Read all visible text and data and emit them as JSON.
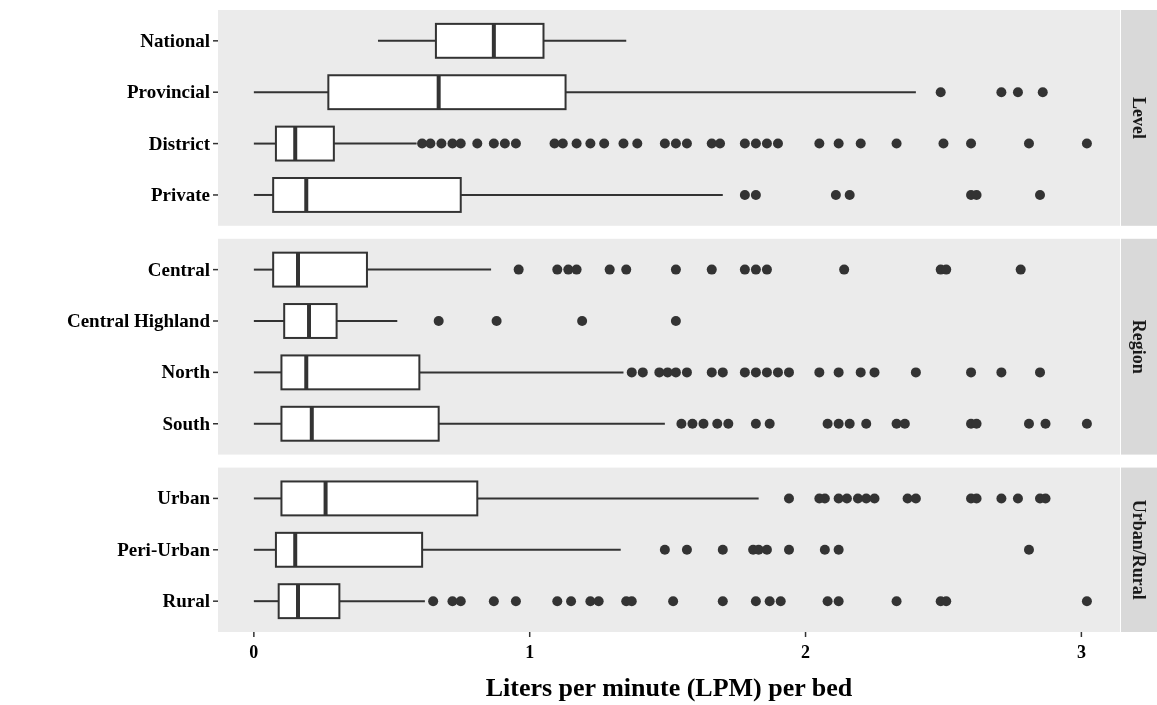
{
  "chart_data": [
    {
      "type": "box",
      "orientation": "horizontal",
      "y2label": "Level",
      "categories": [
        "National",
        "Provincial",
        "District",
        "Private"
      ],
      "xlim": [
        -0.13,
        3.14
      ],
      "xticks": [
        0,
        1,
        2,
        3
      ],
      "tick_labels": "y",
      "boxes": [
        {
          "low": 0.45,
          "q1": 0.66,
          "median": 0.87,
          "q3": 1.05,
          "high": 1.35
        },
        {
          "low": 0,
          "q1": 0.27,
          "median": 0.67,
          "q3": 1.13,
          "high": 2.4,
          "outliers": [
            2.49,
            2.71,
            2.77,
            2.86
          ]
        },
        {
          "low": 0,
          "q1": 0.08,
          "median": 0.15,
          "q3": 0.29,
          "high": 0.59,
          "outliers": [
            0.61,
            0.64,
            0.68,
            0.72,
            0.75,
            0.81,
            0.87,
            0.91,
            0.95,
            1.09,
            1.12,
            1.17,
            1.22,
            1.27,
            1.34,
            1.39,
            1.49,
            1.53,
            1.57,
            1.66,
            1.69,
            1.78,
            1.82,
            1.86,
            1.9,
            2.05,
            2.12,
            2.2,
            2.33,
            2.5,
            2.6,
            2.81,
            3.02
          ]
        },
        {
          "low": 0,
          "q1": 0.07,
          "median": 0.19,
          "q3": 0.75,
          "high": 1.7,
          "outliers": [
            1.78,
            1.82,
            2.11,
            2.16,
            2.6,
            2.62,
            2.85
          ]
        }
      ]
    },
    {
      "type": "box",
      "orientation": "horizontal",
      "y2label": "Region",
      "categories": [
        "Central",
        "Central Highland",
        "North",
        "South"
      ],
      "xlim": [
        -0.13,
        3.14
      ],
      "xticks": [
        0,
        1,
        2,
        3
      ],
      "tick_labels": "y",
      "boxes": [
        {
          "low": 0,
          "q1": 0.07,
          "median": 0.16,
          "q3": 0.41,
          "high": 0.86,
          "outliers": [
            0.96,
            1.1,
            1.14,
            1.17,
            1.29,
            1.35,
            1.53,
            1.66,
            1.78,
            1.82,
            1.86,
            2.14,
            2.49,
            2.51,
            2.78
          ]
        },
        {
          "low": 0,
          "q1": 0.11,
          "median": 0.2,
          "q3": 0.3,
          "high": 0.52,
          "outliers": [
            0.67,
            0.88,
            1.19,
            1.53
          ]
        },
        {
          "low": 0,
          "q1": 0.1,
          "median": 0.19,
          "q3": 0.6,
          "high": 1.34,
          "outliers": [
            1.37,
            1.41,
            1.47,
            1.5,
            1.53,
            1.57,
            1.66,
            1.7,
            1.78,
            1.82,
            1.86,
            1.9,
            1.94,
            2.05,
            2.12,
            2.2,
            2.25,
            2.4,
            2.6,
            2.71,
            2.85
          ]
        },
        {
          "low": 0,
          "q1": 0.1,
          "median": 0.21,
          "q3": 0.67,
          "high": 1.49,
          "outliers": [
            1.55,
            1.59,
            1.63,
            1.68,
            1.72,
            1.82,
            1.87,
            2.08,
            2.12,
            2.16,
            2.22,
            2.33,
            2.36,
            2.6,
            2.62,
            2.81,
            2.87,
            3.02
          ]
        }
      ]
    },
    {
      "type": "box",
      "orientation": "horizontal",
      "y2label": "Urban/Rural",
      "categories": [
        "Urban",
        "Peri-Urban",
        "Rural"
      ],
      "xlim": [
        -0.13,
        3.14
      ],
      "xticks": [
        0,
        1,
        2,
        3
      ],
      "xlabel": "Liters per minute (LPM) per bed",
      "boxes": [
        {
          "low": 0,
          "q1": 0.1,
          "median": 0.26,
          "q3": 0.81,
          "high": 1.83,
          "outliers": [
            1.94,
            2.05,
            2.07,
            2.12,
            2.15,
            2.19,
            2.22,
            2.25,
            2.37,
            2.4,
            2.6,
            2.62,
            2.71,
            2.77,
            2.85,
            2.87
          ]
        },
        {
          "low": 0,
          "q1": 0.08,
          "median": 0.15,
          "q3": 0.61,
          "high": 1.33,
          "outliers": [
            1.49,
            1.57,
            1.7,
            1.81,
            1.83,
            1.86,
            1.94,
            2.07,
            2.12,
            2.81
          ]
        },
        {
          "low": 0,
          "q1": 0.09,
          "median": 0.16,
          "q3": 0.31,
          "high": 0.62,
          "outliers": [
            0.65,
            0.72,
            0.75,
            0.87,
            0.95,
            1.1,
            1.15,
            1.22,
            1.25,
            1.35,
            1.37,
            1.52,
            1.7,
            1.82,
            1.87,
            1.91,
            2.08,
            2.12,
            2.33,
            2.49,
            2.51,
            3.02
          ]
        }
      ]
    }
  ]
}
